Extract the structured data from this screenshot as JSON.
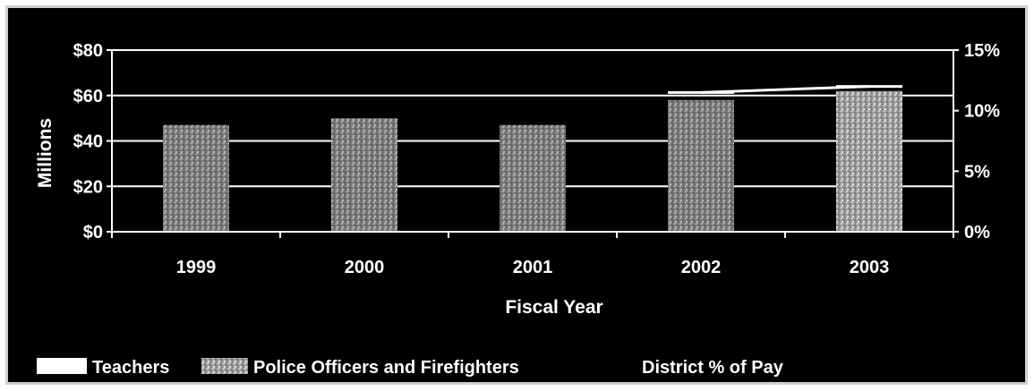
{
  "chart_data": {
    "type": "bar",
    "title": "",
    "xlabel": "Fiscal Year",
    "ylabel": "Millions",
    "y2label": "",
    "categories": [
      "1999",
      "2000",
      "2001",
      "2002",
      "2003"
    ],
    "ylim": [
      0,
      80
    ],
    "y2lim": [
      0,
      15
    ],
    "yticks": [
      "$0",
      "$20",
      "$40",
      "$60",
      "$80"
    ],
    "y2ticks": [
      "0%",
      "5%",
      "10%",
      "15%"
    ],
    "grid": true,
    "legend_position": "bottom",
    "series": [
      {
        "name": "Teachers",
        "kind": "bar-stacked",
        "values": [
          0,
          0,
          0,
          0,
          0
        ]
      },
      {
        "name": "Police Officers and Firefighters",
        "kind": "bar-stacked",
        "values": [
          47,
          50,
          47,
          58,
          62
        ]
      },
      {
        "name": "District % of Pay",
        "kind": "line-secondary",
        "values": [
          null,
          null,
          null,
          11.5,
          12.0
        ]
      }
    ],
    "colors": {
      "background": "#000000",
      "text": "#ffffff",
      "grid": "#ffffff",
      "teachers": "#ffffff",
      "police": "#8a8a8a",
      "line": "#ffffff"
    }
  }
}
